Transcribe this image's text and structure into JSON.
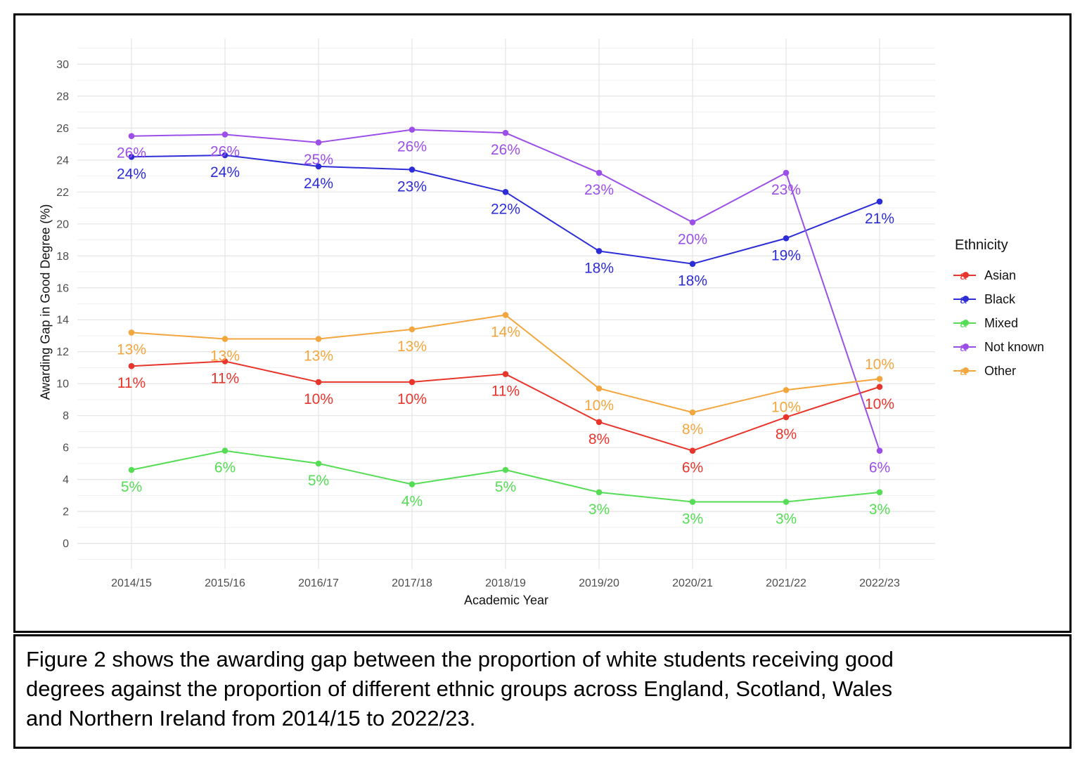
{
  "figure": {
    "caption": "Figure 2 shows the awarding gap between the proportion of white students receiving good degrees against the proportion of different ethnic groups across England, Scotland, Wales and Northern Ireland from 2014/15 to 2022/23.",
    "caption_lines": [
      "Figure 2 shows the awarding gap between the proportion of white students receiving good",
      "degrees against the proportion of different ethnic groups across England, Scotland, Wales",
      "and Northern Ireland from 2014/15 to 2022/23."
    ]
  },
  "chart_data": {
    "type": "line",
    "title": "",
    "xlabel": "Academic Year",
    "ylabel": "Awarding Gap in Good Degree (%)",
    "ylim": [
      -1.6,
      31.6
    ],
    "yticks": [
      0,
      2,
      4,
      6,
      8,
      10,
      12,
      14,
      16,
      18,
      20,
      22,
      24,
      26,
      28,
      30
    ],
    "grid": "major gridlines at even values, minor at odd values, vertical gridline per category",
    "legend": {
      "title": "Ethnicity",
      "position": "right"
    },
    "categories": [
      "2014/15",
      "2015/16",
      "2016/17",
      "2017/18",
      "2018/19",
      "2019/20",
      "2020/21",
      "2021/22",
      "2022/23"
    ],
    "series": [
      {
        "name": "Asian",
        "color": "#e8352c",
        "values": [
          11.1,
          11.4,
          10.1,
          10.1,
          10.6,
          7.6,
          5.8,
          7.9,
          9.8
        ],
        "labels": [
          "11%",
          "11%",
          "10%",
          "10%",
          "11%",
          "8%",
          "6%",
          "8%",
          "10%"
        ]
      },
      {
        "name": "Black",
        "color": "#2d2dd8",
        "values": [
          24.2,
          24.3,
          23.6,
          23.4,
          22.0,
          18.3,
          17.5,
          19.1,
          21.4
        ],
        "labels": [
          "24%",
          "24%",
          "24%",
          "23%",
          "22%",
          "18%",
          "18%",
          "19%",
          "21%"
        ]
      },
      {
        "name": "Mixed",
        "color": "#55dd55",
        "values": [
          4.6,
          5.8,
          5.0,
          3.7,
          4.6,
          3.2,
          2.6,
          2.6,
          3.2
        ],
        "labels": [
          "5%",
          "6%",
          "5%",
          "4%",
          "5%",
          "3%",
          "3%",
          "3%",
          "3%"
        ]
      },
      {
        "name": "Not known",
        "color": "#9c4fe8",
        "values": [
          25.5,
          25.6,
          25.1,
          25.9,
          25.7,
          23.2,
          20.1,
          23.2,
          5.8
        ],
        "labels": [
          "26%",
          "26%",
          "25%",
          "26%",
          "26%",
          "23%",
          "20%",
          "23%",
          "6%"
        ]
      },
      {
        "name": "Other",
        "color": "#f3a63d",
        "values": [
          13.2,
          12.8,
          12.8,
          13.4,
          14.3,
          9.7,
          8.2,
          9.6,
          10.3
        ],
        "labels": [
          "13%",
          "13%",
          "13%",
          "13%",
          "14%",
          "10%",
          "8%",
          "10%",
          "10%"
        ],
        "label_side": [
          "below",
          "below",
          "below",
          "below",
          "below",
          "below",
          "below",
          "below",
          "above"
        ]
      }
    ]
  }
}
